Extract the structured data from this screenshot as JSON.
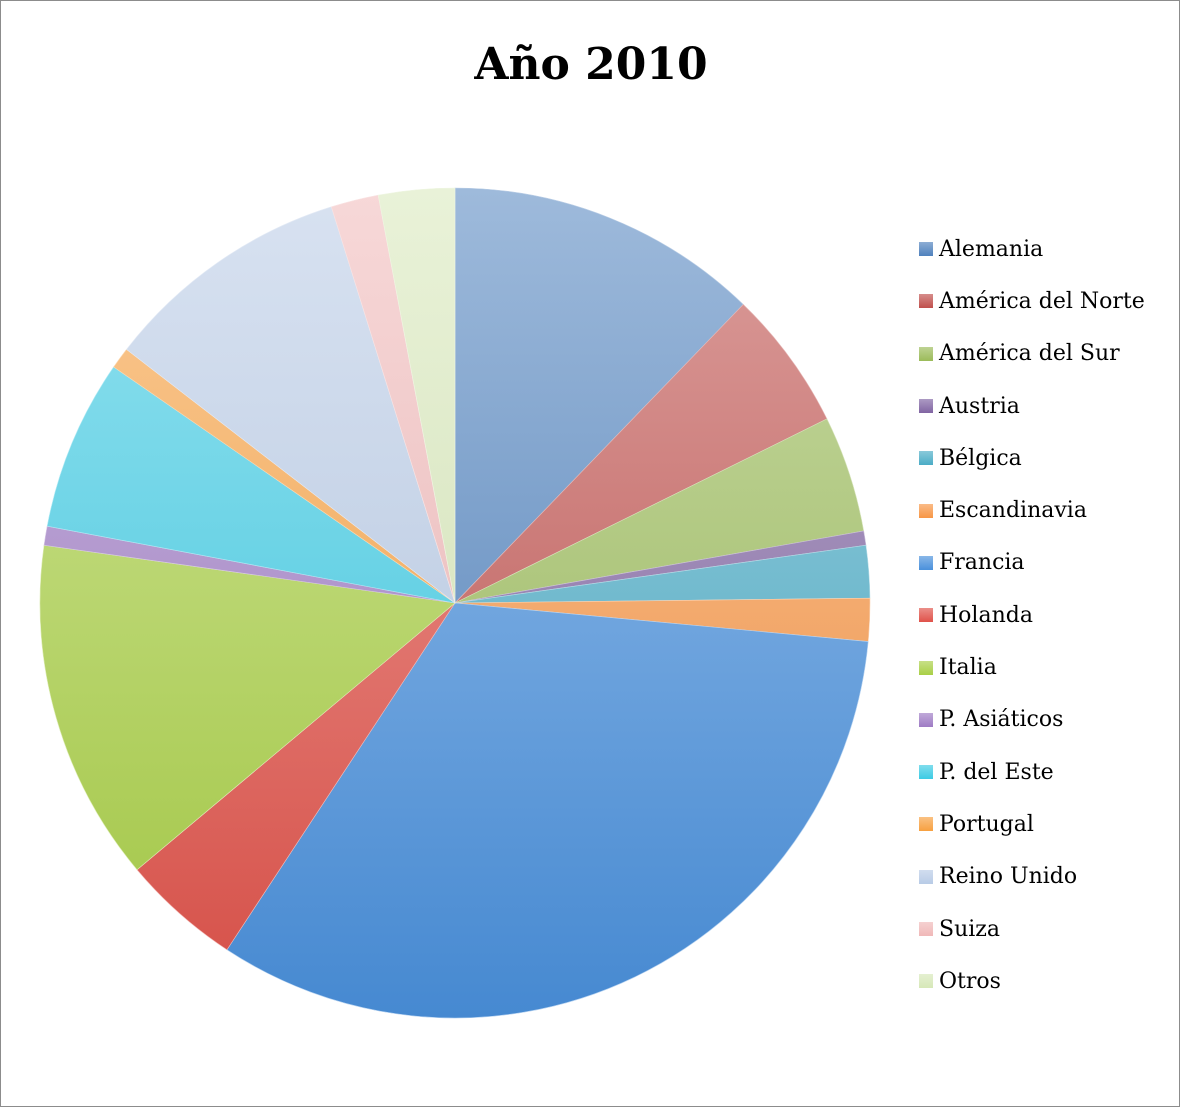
{
  "chart_data": {
    "type": "pie",
    "title": "Año 2010",
    "start_angle_deg": 0,
    "direction": "clockwise",
    "legend_position": "right",
    "slices": [
      {
        "label": "Alemania",
        "value": 13.2,
        "color": "#4f81bd"
      },
      {
        "label": "América del Norte",
        "value": 5.9,
        "color": "#c0504d"
      },
      {
        "label": "América del Sur",
        "value": 4.9,
        "color": "#9bbb59"
      },
      {
        "label": "Austria",
        "value": 0.6,
        "color": "#8064a2"
      },
      {
        "label": "Bélgica",
        "value": 2.2,
        "color": "#4bacc6"
      },
      {
        "label": "Escandinavia",
        "value": 1.8,
        "color": "#f79646"
      },
      {
        "label": "Francia",
        "value": 35.4,
        "color": "#4a90dc"
      },
      {
        "label": "Holanda",
        "value": 5.0,
        "color": "#e0524a"
      },
      {
        "label": "Italia",
        "value": 14.4,
        "color": "#a9cf46"
      },
      {
        "label": "P. Asiáticos",
        "value": 0.8,
        "color": "#9e7bc4"
      },
      {
        "label": "P. del Este",
        "value": 7.2,
        "color": "#3ccbe4"
      },
      {
        "label": "Portugal",
        "value": 0.9,
        "color": "#f7a040"
      },
      {
        "label": "Reino Unido",
        "value": 10.5,
        "color": "#b8cbe6"
      },
      {
        "label": "Suiza",
        "value": 2.0,
        "color": "#f0b8b8"
      },
      {
        "label": "Otros",
        "value": 3.2,
        "color": "#d7e8b8"
      }
    ]
  }
}
